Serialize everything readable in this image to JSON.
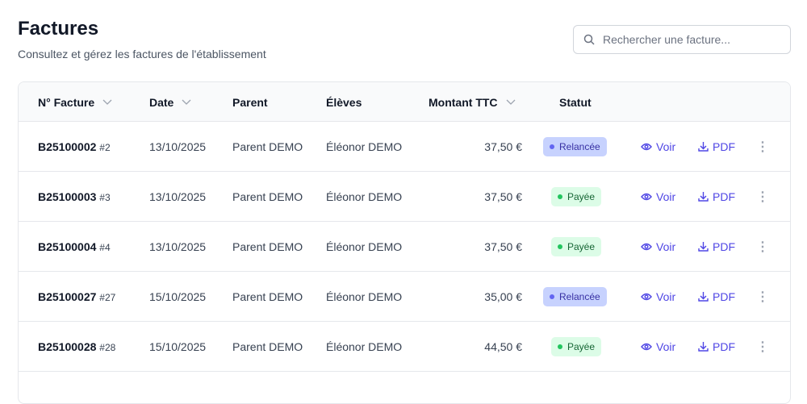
{
  "header": {
    "title": "Factures",
    "subtitle": "Consultez et gérez les factures de l'établissement",
    "search_placeholder": "Rechercher une facture..."
  },
  "columns": [
    "N° Facture",
    "Date",
    "Parent",
    "Élèves",
    "Montant TTC",
    "Statut"
  ],
  "actions": {
    "view": "Voir",
    "pdf": "PDF"
  },
  "status_colors": {
    "Relancée": {
      "bg": "#c7d2fe",
      "fg": "#3730a3",
      "dot": "#6366f1"
    },
    "Payée": {
      "bg": "#dcfce7",
      "fg": "#166534",
      "dot": "#22c55e"
    }
  },
  "rows": [
    {
      "number": "B25100002",
      "id": "#2",
      "date": "13/10/2025",
      "parent": "Parent DEMO",
      "students": "Éléonor DEMO",
      "amount": "37,50 €",
      "status": "Relancée"
    },
    {
      "number": "B25100003",
      "id": "#3",
      "date": "13/10/2025",
      "parent": "Parent DEMO",
      "students": "Éléonor DEMO",
      "amount": "37,50 €",
      "status": "Payée"
    },
    {
      "number": "B25100004",
      "id": "#4",
      "date": "13/10/2025",
      "parent": "Parent DEMO",
      "students": "Éléonor DEMO",
      "amount": "37,50 €",
      "status": "Payée"
    },
    {
      "number": "B25100027",
      "id": "#27",
      "date": "15/10/2025",
      "parent": "Parent DEMO",
      "students": "Éléonor DEMO",
      "amount": "35,00 €",
      "status": "Relancée"
    },
    {
      "number": "B25100028",
      "id": "#28",
      "date": "15/10/2025",
      "parent": "Parent DEMO",
      "students": "Éléonor DEMO",
      "amount": "44,50 €",
      "status": "Payée"
    }
  ]
}
